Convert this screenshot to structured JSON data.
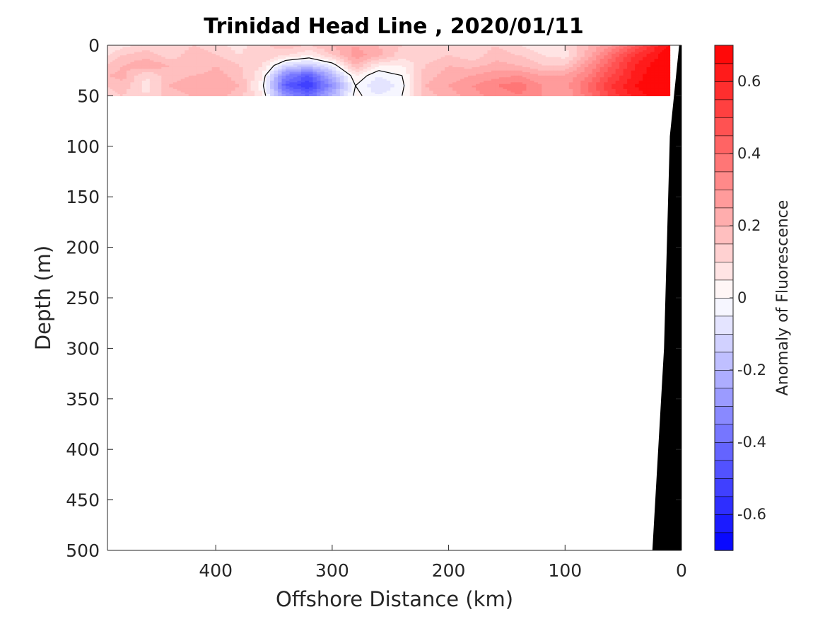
{
  "chart_data": {
    "type": "heatmap",
    "title": "Trinidad Head Line , 2020/01/11",
    "xlabel": "Offshore Distance (km)",
    "ylabel": "Depth (m)",
    "xlim": [
      493,
      0
    ],
    "ylim": [
      0,
      500
    ],
    "x_reversed": true,
    "y_reversed": true,
    "xticks": [
      400,
      300,
      200,
      100,
      0
    ],
    "yticks": [
      0,
      50,
      100,
      150,
      200,
      250,
      300,
      350,
      400,
      450,
      500
    ],
    "colorbar": {
      "label": "Anomaly of Fluorescence",
      "range": [
        -0.7,
        0.7
      ],
      "levels": 28,
      "ticks": [
        0.6,
        0.4,
        0.2,
        0,
        -0.2,
        -0.4,
        -0.6
      ],
      "colors": {
        "negative": "#0000ff",
        "zero": "#ffffff",
        "positive": "#ff0000"
      }
    },
    "data_region": {
      "x": [
        493,
        10
      ],
      "depth": [
        0,
        50
      ]
    },
    "x": [
      493,
      480,
      460,
      440,
      420,
      400,
      380,
      360,
      340,
      320,
      300,
      280,
      260,
      240,
      220,
      200,
      180,
      160,
      140,
      120,
      100,
      80,
      60,
      40,
      20,
      10
    ],
    "depth": [
      0,
      10,
      20,
      30,
      40,
      50
    ],
    "z": [
      [
        0.05,
        0.08,
        0.12,
        0.1,
        0.15,
        0.12,
        0.08,
        0.14,
        0.18,
        0.15,
        0.2,
        0.25,
        0.2,
        0.15,
        0.1,
        0.12,
        0.1,
        0.15,
        0.1,
        0.05,
        0.1,
        0.2,
        0.3,
        0.45,
        0.6,
        0.65
      ],
      [
        0.1,
        0.15,
        0.18,
        0.12,
        0.18,
        0.15,
        0.1,
        0.15,
        0.1,
        0.05,
        0.15,
        0.28,
        0.22,
        0.12,
        0.12,
        0.15,
        0.12,
        0.18,
        0.15,
        0.1,
        0.08,
        0.22,
        0.4,
        0.55,
        0.65,
        0.7
      ],
      [
        0.15,
        0.2,
        0.25,
        0.2,
        0.15,
        0.2,
        0.15,
        0.1,
        -0.1,
        -0.15,
        -0.05,
        0.2,
        0.05,
        0.05,
        0.15,
        0.2,
        0.18,
        0.22,
        0.2,
        0.15,
        0.15,
        0.3,
        0.45,
        0.6,
        0.68,
        0.7
      ],
      [
        0.2,
        0.22,
        0.1,
        0.18,
        0.2,
        0.22,
        0.18,
        0.05,
        -0.35,
        -0.45,
        -0.2,
        0.05,
        -0.05,
        0.0,
        0.18,
        0.22,
        0.25,
        0.28,
        0.3,
        0.25,
        0.25,
        0.35,
        0.5,
        0.62,
        0.7,
        0.7
      ],
      [
        0.15,
        0.18,
        0.08,
        0.2,
        0.22,
        0.25,
        0.2,
        0.02,
        -0.45,
        -0.55,
        -0.3,
        0.0,
        -0.1,
        -0.02,
        0.2,
        0.25,
        0.3,
        0.35,
        0.38,
        0.3,
        0.28,
        0.4,
        0.55,
        0.65,
        0.7,
        0.7
      ],
      [
        0.12,
        0.15,
        0.1,
        0.18,
        0.2,
        0.22,
        0.18,
        0.05,
        -0.3,
        -0.4,
        -0.2,
        0.02,
        -0.05,
        0.0,
        0.18,
        0.22,
        0.28,
        0.32,
        0.35,
        0.3,
        0.25,
        0.38,
        0.52,
        0.62,
        0.68,
        0.7
      ]
    ],
    "seafloor": [
      [
        25,
        500
      ],
      [
        15,
        300
      ],
      [
        10,
        90
      ],
      [
        2,
        0
      ],
      [
        0,
        0
      ],
      [
        0,
        500
      ]
    ]
  }
}
